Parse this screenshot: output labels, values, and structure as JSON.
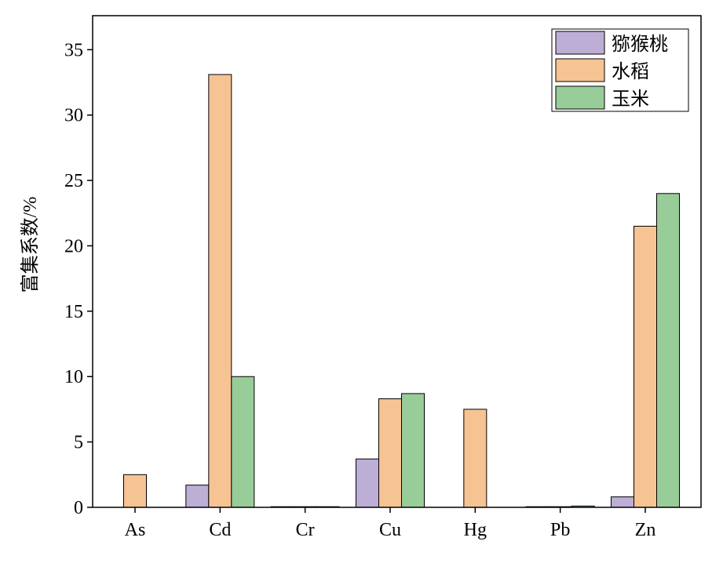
{
  "chart_data": {
    "type": "bar",
    "y_label": "富集系数/%",
    "categories": [
      "As",
      "Cd",
      "Cr",
      "Cu",
      "Hg",
      "Pb",
      "Zn"
    ],
    "series": [
      {
        "name": "猕猴桃",
        "color": "#bcaed4",
        "values": [
          0,
          1.7,
          0.05,
          3.7,
          0,
          0.05,
          0.8
        ]
      },
      {
        "name": "水稻",
        "color": "#f6c393",
        "values": [
          2.5,
          33.1,
          0.05,
          8.3,
          7.5,
          0.05,
          21.5
        ]
      },
      {
        "name": "玉米",
        "color": "#98cc98",
        "values": [
          0,
          10,
          0.05,
          8.7,
          0,
          0.1,
          24.0
        ]
      }
    ],
    "ylim": [
      0,
      37.6
    ],
    "yticks": [
      0,
      5,
      10,
      15,
      20,
      25,
      30,
      35
    ],
    "legend": "upper right"
  }
}
